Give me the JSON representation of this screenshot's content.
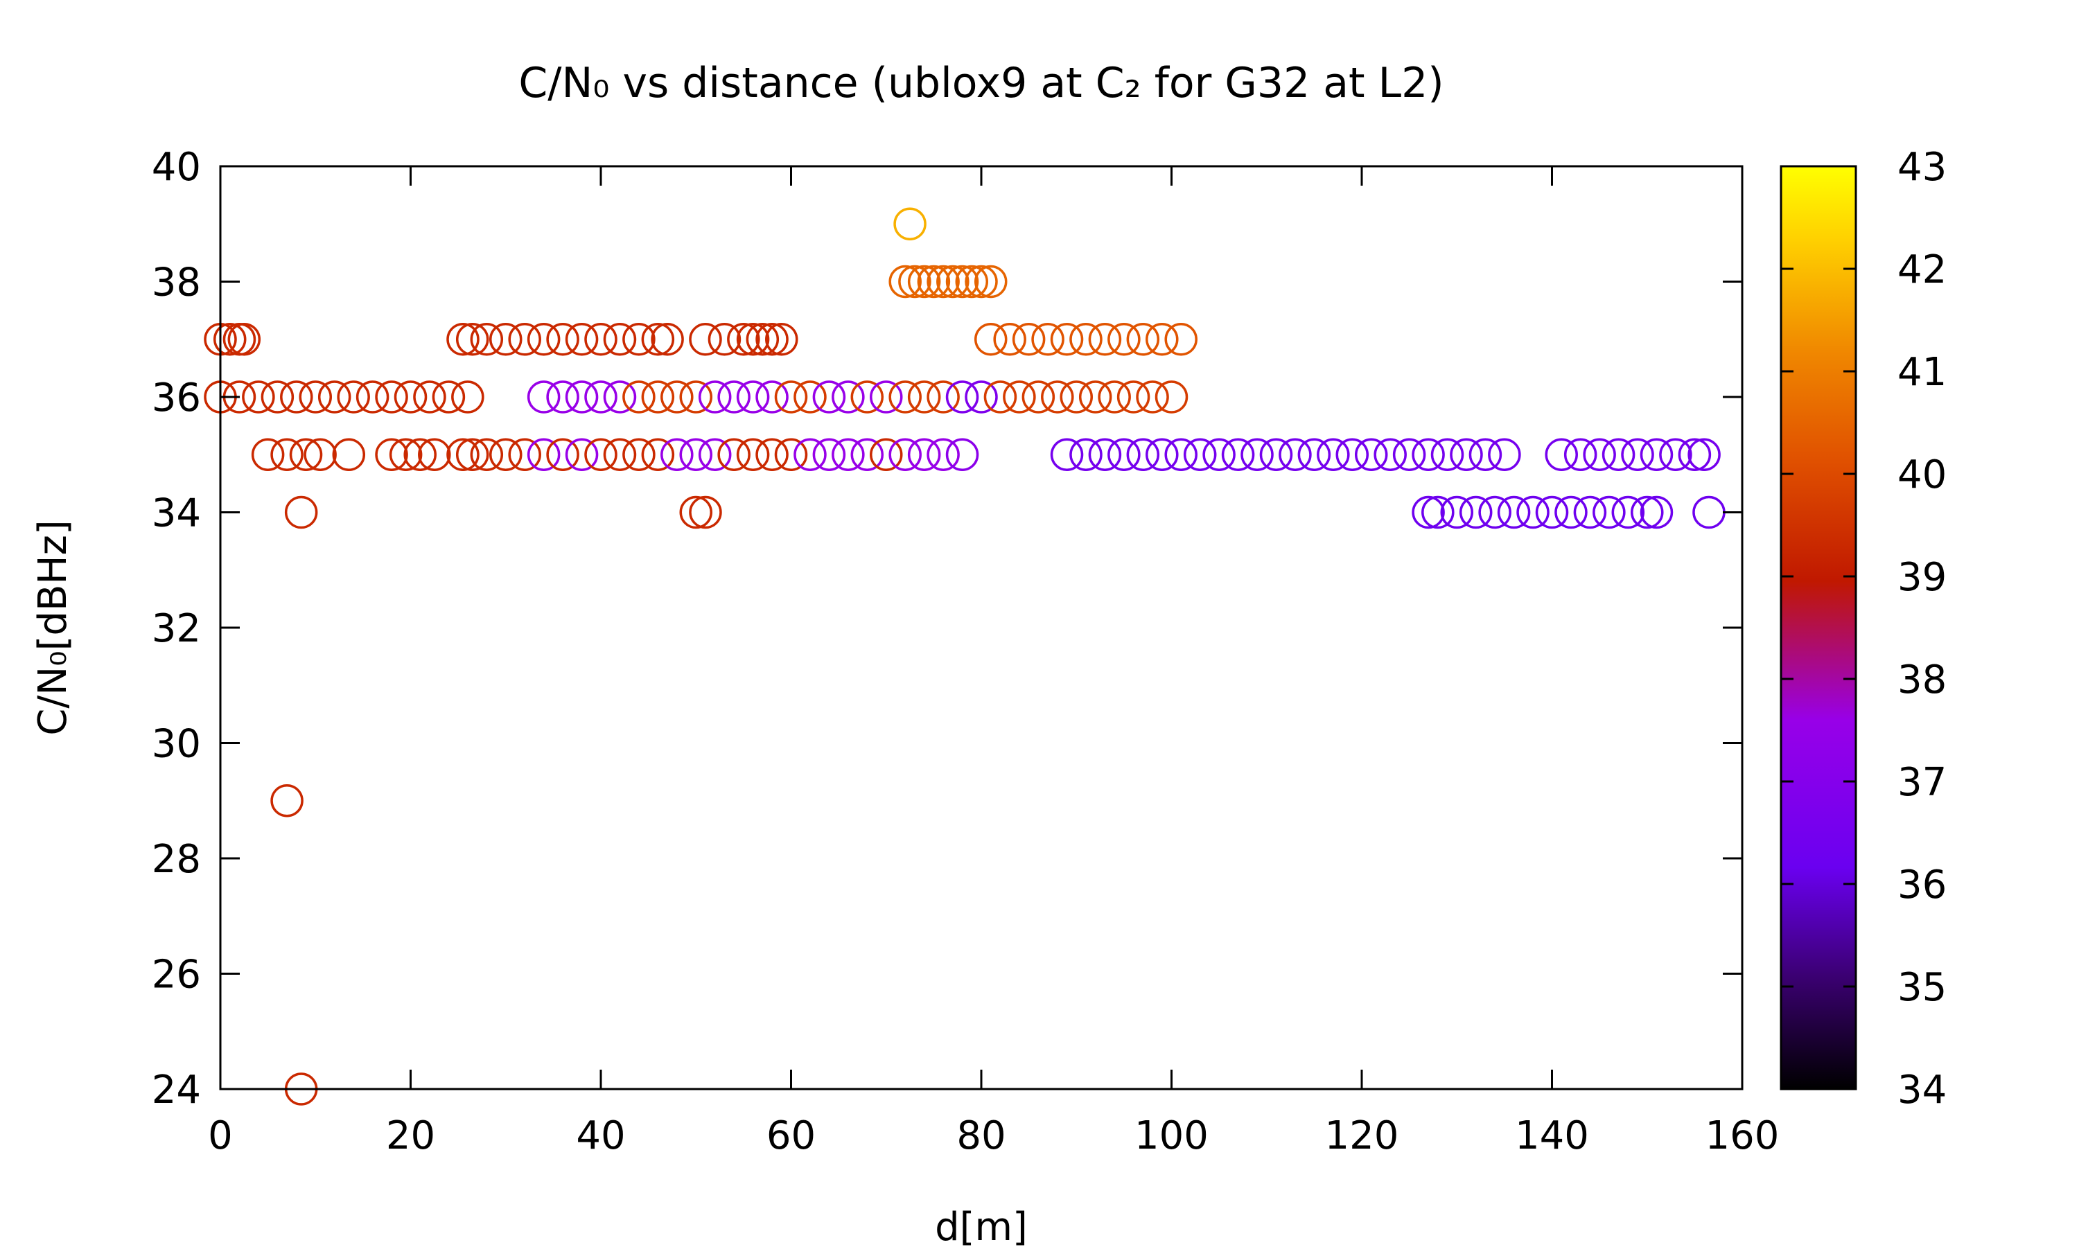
{
  "chart_data": {
    "type": "scatter",
    "title": "C/N₀ vs distance (ublox9 at C₂ for G32 at L2)",
    "xlabel": "d[m]",
    "ylabel": "C/N₀[dBHz]",
    "xlim": [
      0,
      160
    ],
    "ylim": [
      24,
      40
    ],
    "xticks": [
      "0",
      "20",
      "40",
      "60",
      "80",
      "100",
      "120",
      "140",
      "160"
    ],
    "yticks": [
      "24",
      "26",
      "28",
      "30",
      "32",
      "34",
      "36",
      "38",
      "40"
    ],
    "colorbar": {
      "range": [
        34,
        43
      ],
      "ticks": [
        "34",
        "35",
        "36",
        "37",
        "38",
        "39",
        "40",
        "41",
        "42",
        "43"
      ],
      "palette": [
        "#000000",
        "#3a0070",
        "#6a00f0",
        "#9800e8",
        "#c01800",
        "#e05000",
        "#f08800",
        "#ffd000",
        "#ffff00"
      ]
    },
    "marker": "open-circle",
    "series": [
      {
        "x": [
          0,
          2,
          4,
          6,
          8,
          10,
          12,
          14,
          16,
          18,
          20,
          22,
          24,
          26,
          34,
          36,
          38,
          40,
          42,
          44,
          46,
          48,
          50,
          52,
          54,
          56,
          58,
          60,
          62,
          64,
          66,
          68,
          70,
          72,
          74,
          76,
          78,
          80,
          82,
          84,
          86,
          88,
          90,
          92,
          94,
          96,
          98,
          100
        ],
        "y": [
          36,
          36,
          36,
          36,
          36,
          36,
          36,
          36,
          36,
          36,
          36,
          36,
          36,
          36,
          36,
          36,
          36,
          36,
          36,
          36,
          36,
          36,
          36,
          36,
          36,
          36,
          36,
          36,
          36,
          36,
          36,
          36,
          36,
          36,
          36,
          36,
          36,
          36,
          36,
          36,
          36,
          36,
          36,
          36,
          36,
          36,
          36,
          36
        ],
        "c": [
          39.3,
          39.3,
          39.3,
          39.3,
          39.3,
          39.3,
          39.3,
          39.3,
          39.3,
          39.3,
          39.3,
          39.3,
          39.3,
          39.3,
          37.6,
          37.6,
          37.6,
          37.6,
          37.6,
          39.7,
          39.7,
          39.7,
          39.7,
          37.6,
          37.6,
          37.6,
          37.6,
          39.7,
          39.7,
          37.6,
          37.6,
          39.7,
          37.6,
          39.7,
          39.7,
          39.7,
          36.8,
          36.8,
          39.7,
          39.7,
          39.7,
          39.7,
          39.7,
          39.7,
          39.7,
          39.7,
          39.7,
          39.7
        ]
      },
      {
        "x": [
          0,
          1,
          2,
          2.5,
          25.5,
          26.5,
          28,
          30,
          32,
          34,
          36,
          38,
          40,
          42,
          44,
          46,
          47,
          51,
          53,
          55,
          56,
          57,
          58,
          59
        ],
        "y": [
          37,
          37,
          37,
          37,
          37,
          37,
          37,
          37,
          37,
          37,
          37,
          37,
          37,
          37,
          37,
          37,
          37,
          37,
          37,
          37,
          37,
          37,
          37,
          37
        ],
        "c": [
          39.3,
          39.3,
          39.3,
          39.3,
          39.3,
          39.3,
          39.3,
          39.3,
          39.3,
          39.3,
          39.3,
          39.3,
          39.3,
          39.3,
          39.3,
          39.3,
          39.3,
          39.3,
          39.3,
          39.3,
          39.3,
          39.3,
          39.3,
          39.3
        ]
      },
      {
        "x": [
          81,
          83,
          85,
          87,
          89,
          91,
          93,
          95,
          97,
          99,
          101
        ],
        "y": [
          37,
          37,
          37,
          37,
          37,
          37,
          37,
          37,
          37,
          37,
          37
        ],
        "c": [
          40.2,
          40.2,
          40.2,
          40.2,
          40.2,
          40.2,
          40.2,
          40.2,
          40.2,
          40.2,
          40.2
        ]
      },
      {
        "x": [
          72,
          73,
          74,
          75,
          76,
          77,
          78,
          79,
          80,
          81
        ],
        "y": [
          38,
          38,
          38,
          38,
          38,
          38,
          38,
          38,
          38,
          38
        ],
        "c": [
          40.5,
          40.5,
          40.5,
          40.5,
          40.5,
          40.5,
          40.5,
          40.5,
          40.5,
          40.5
        ]
      },
      {
        "x": [
          72.5
        ],
        "y": [
          39
        ],
        "c": [
          41.8
        ]
      },
      {
        "x": [
          5,
          7,
          9,
          10.5,
          13.5,
          18,
          19.5,
          21,
          22.5,
          25.5,
          26.5,
          28,
          30,
          32,
          34,
          36,
          38,
          40,
          42,
          44,
          46,
          48,
          50,
          52,
          54,
          56,
          58,
          60,
          62,
          64,
          66,
          68,
          70,
          72,
          74,
          76,
          78
        ],
        "y": [
          35,
          35,
          35,
          35,
          35,
          35,
          35,
          35,
          35,
          35,
          35,
          35,
          35,
          35,
          35,
          35,
          35,
          35,
          35,
          35,
          35,
          35,
          35,
          35,
          35,
          35,
          35,
          35,
          35,
          35,
          35,
          35,
          35,
          35,
          35,
          35,
          35
        ],
        "c": [
          39.3,
          39.3,
          39.3,
          39.3,
          39.3,
          39.3,
          39.3,
          39.3,
          39.3,
          39.3,
          39.3,
          39.3,
          39.3,
          39.3,
          37.6,
          39.3,
          37.6,
          39.3,
          39.3,
          39.3,
          39.3,
          37.6,
          37.6,
          37.6,
          39.3,
          39.3,
          39.3,
          39.3,
          37.6,
          37.6,
          37.6,
          37.6,
          39.3,
          37.6,
          37.6,
          37.6,
          37.2
        ]
      },
      {
        "x": [
          89,
          91,
          93,
          95,
          97,
          99,
          101,
          103,
          105,
          107,
          109,
          111,
          113,
          115,
          117,
          119,
          121,
          123,
          125,
          127,
          129,
          131,
          133,
          135,
          141,
          143,
          145,
          147,
          149,
          151,
          153,
          155,
          156
        ],
        "y": [
          35,
          35,
          35,
          35,
          35,
          35,
          35,
          35,
          35,
          35,
          35,
          35,
          35,
          35,
          35,
          35,
          35,
          35,
          35,
          35,
          35,
          35,
          35,
          35,
          35,
          35,
          35,
          35,
          35,
          35,
          35,
          35,
          35
        ],
        "c": [
          36.5,
          36.5,
          36.5,
          36.5,
          36.5,
          36.5,
          36.5,
          36.5,
          36.5,
          36.5,
          36.5,
          36.5,
          36.5,
          36.5,
          36.5,
          36.5,
          36.5,
          36.5,
          36.5,
          36.5,
          36.5,
          36.5,
          36.5,
          36.5,
          36.5,
          36.5,
          36.5,
          36.5,
          36.5,
          36.5,
          36.5,
          36.5,
          36.5
        ]
      },
      {
        "x": [
          8.5,
          50,
          51
        ],
        "y": [
          34,
          34,
          34
        ],
        "c": [
          39.3,
          39.3,
          39.3
        ]
      },
      {
        "x": [
          127,
          128,
          130,
          132,
          134,
          136,
          138,
          140,
          142,
          144,
          146,
          148,
          150,
          151,
          156.5
        ],
        "y": [
          34,
          34,
          34,
          34,
          34,
          34,
          34,
          34,
          34,
          34,
          34,
          34,
          34,
          34,
          34
        ],
        "c": [
          36.3,
          36.3,
          36.3,
          36.3,
          36.3,
          36.3,
          36.3,
          36.3,
          36.3,
          36.3,
          36.3,
          36.3,
          36.3,
          36.3,
          36.3
        ]
      },
      {
        "x": [
          7
        ],
        "y": [
          29
        ],
        "c": [
          39.3
        ]
      },
      {
        "x": [
          8.5
        ],
        "y": [
          24
        ],
        "c": [
          39.3
        ]
      }
    ]
  }
}
